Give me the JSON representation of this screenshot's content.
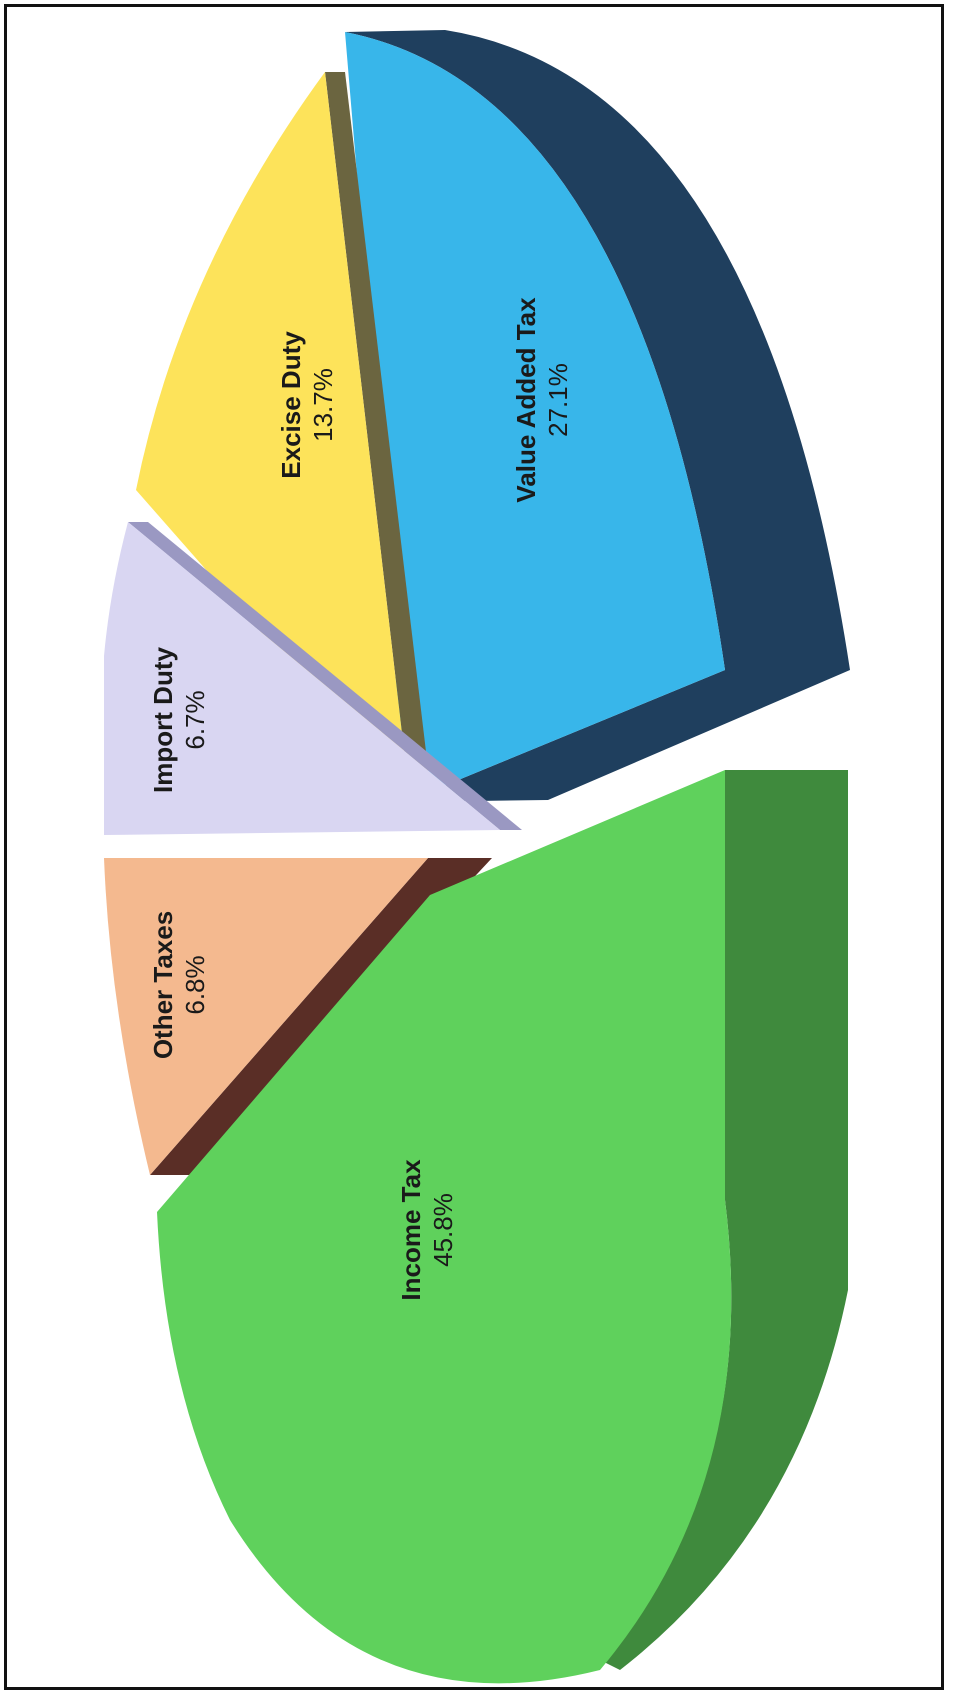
{
  "chart_data": {
    "type": "pie",
    "title": "",
    "slices": [
      {
        "label": "Income Tax",
        "value": 45.8,
        "value_label": "45.8%",
        "color": "#5fd15c",
        "side_color": "#3f8a3d"
      },
      {
        "label": "Other Taxes",
        "value": 6.8,
        "value_label": "6.8%",
        "color": "#f4b98f",
        "side_color": "#5a2e26"
      },
      {
        "label": "Import Duty",
        "value": 6.7,
        "value_label": "6.7%",
        "color": "#d9d6f2",
        "side_color": "#9a98c2"
      },
      {
        "label": "Excise Duty",
        "value": 13.7,
        "value_label": "13.7%",
        "color": "#fde35a",
        "side_color": "#6b6540"
      },
      {
        "label": "Value Added Tax",
        "value": 27.1,
        "value_label": "27.1%",
        "color": "#38b6ea",
        "side_color": "#1f3f5e"
      }
    ],
    "style": "3d-exploded",
    "orientation": "rotated-90-ccw"
  }
}
